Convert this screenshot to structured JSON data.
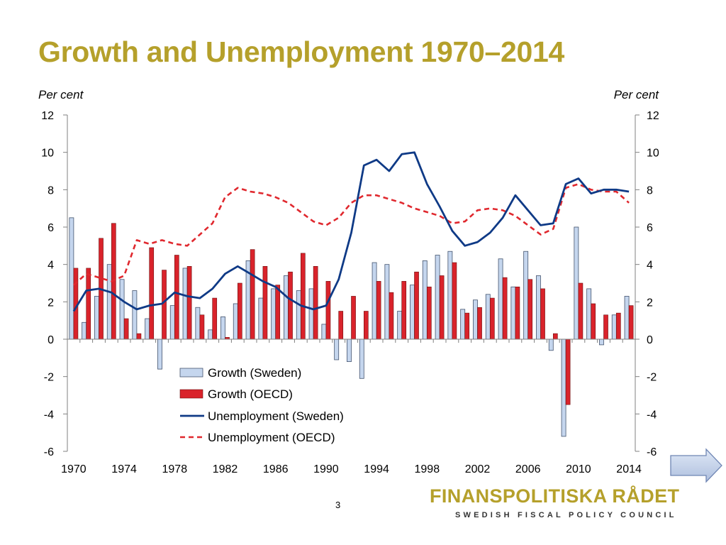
{
  "slide": {
    "title": "Growth and Unemployment 1970–2014",
    "page_number": "3"
  },
  "axes": {
    "left_unit": "Per cent",
    "right_unit": "Per cent"
  },
  "logo": {
    "main": "FINANSPOLITISKA RÅDET",
    "sub": "SWEDISH FISCAL POLICY COUNCIL"
  },
  "nav": {
    "next_icon": "right-arrow-icon"
  },
  "colors": {
    "title": "#b5a02b",
    "growth_sweden": "#c5d6ee",
    "growth_oecd": "#d9232b",
    "unemployment_sweden": "#0f3a86",
    "unemployment_oecd": "#e0282e"
  },
  "chart_data": {
    "type": "bar+line",
    "x": [
      1970,
      1971,
      1972,
      1973,
      1974,
      1975,
      1976,
      1977,
      1978,
      1979,
      1980,
      1981,
      1982,
      1983,
      1984,
      1985,
      1986,
      1987,
      1988,
      1989,
      1990,
      1991,
      1992,
      1993,
      1994,
      1995,
      1996,
      1997,
      1998,
      1999,
      2000,
      2001,
      2002,
      2003,
      2004,
      2005,
      2006,
      2007,
      2008,
      2009,
      2010,
      2011,
      2012,
      2013,
      2014
    ],
    "x_tick_labels": [
      "1970",
      "1974",
      "1978",
      "1982",
      "1986",
      "1990",
      "1994",
      "1998",
      "2002",
      "2006",
      "2010",
      "2014"
    ],
    "ylim": [
      -6,
      12
    ],
    "y_ticks": [
      -6,
      -4,
      -2,
      0,
      2,
      4,
      6,
      8,
      10,
      12
    ],
    "y2_ticks": [
      -6,
      -4,
      -2,
      0,
      2,
      4,
      6,
      8,
      10,
      12
    ],
    "legend_position": "center-bottom",
    "grid": false,
    "series": [
      {
        "name": "Growth (Sweden)",
        "kind": "bar",
        "values": [
          6.5,
          0.9,
          2.3,
          4.0,
          3.2,
          2.6,
          1.1,
          -1.6,
          1.8,
          3.8,
          1.7,
          0.5,
          1.2,
          1.9,
          4.2,
          2.2,
          2.7,
          3.4,
          2.6,
          2.7,
          0.8,
          -1.1,
          -1.2,
          -2.1,
          4.1,
          4.0,
          1.5,
          2.9,
          4.2,
          4.5,
          4.7,
          1.6,
          2.1,
          2.4,
          4.3,
          2.8,
          4.7,
          3.4,
          -0.6,
          -5.2,
          6.0,
          2.7,
          -0.3,
          1.3,
          2.3
        ]
      },
      {
        "name": "Growth (OECD)",
        "kind": "bar",
        "values": [
          3.8,
          3.8,
          5.4,
          6.2,
          1.1,
          0.3,
          4.9,
          3.7,
          4.5,
          3.9,
          1.3,
          2.2,
          0.1,
          3.0,
          4.8,
          3.9,
          2.9,
          3.6,
          4.6,
          3.9,
          3.1,
          1.5,
          2.3,
          1.5,
          3.1,
          2.5,
          3.1,
          3.6,
          2.8,
          3.4,
          4.1,
          1.4,
          1.7,
          2.2,
          3.3,
          2.8,
          3.2,
          2.7,
          0.3,
          -3.5,
          3.0,
          1.9,
          1.3,
          1.4,
          1.8
        ]
      },
      {
        "name": "Unemployment (Sweden)",
        "kind": "line",
        "values": [
          1.5,
          2.6,
          2.7,
          2.5,
          2.0,
          1.6,
          1.8,
          1.9,
          2.5,
          2.3,
          2.2,
          2.7,
          3.5,
          3.9,
          3.5,
          3.1,
          2.8,
          2.2,
          1.8,
          1.6,
          1.8,
          3.2,
          5.7,
          9.3,
          9.6,
          9.0,
          9.9,
          10.0,
          8.3,
          7.1,
          5.8,
          5.0,
          5.2,
          5.7,
          6.5,
          7.7,
          6.9,
          6.1,
          6.2,
          8.3,
          8.6,
          7.8,
          8.0,
          8.0,
          7.9
        ]
      },
      {
        "name": "Unemployment (OECD)",
        "kind": "line",
        "style": "dashed",
        "values": [
          2.9,
          3.5,
          3.3,
          3.1,
          3.4,
          5.3,
          5.1,
          5.3,
          5.1,
          5.0,
          5.6,
          6.2,
          7.6,
          8.1,
          7.9,
          7.8,
          7.6,
          7.3,
          6.8,
          6.3,
          6.1,
          6.5,
          7.3,
          7.7,
          7.7,
          7.5,
          7.3,
          7.0,
          6.8,
          6.6,
          6.2,
          6.3,
          6.9,
          7.0,
          6.9,
          6.6,
          6.1,
          5.6,
          5.9,
          8.1,
          8.3,
          8.0,
          7.9,
          7.9,
          7.3
        ]
      }
    ]
  }
}
